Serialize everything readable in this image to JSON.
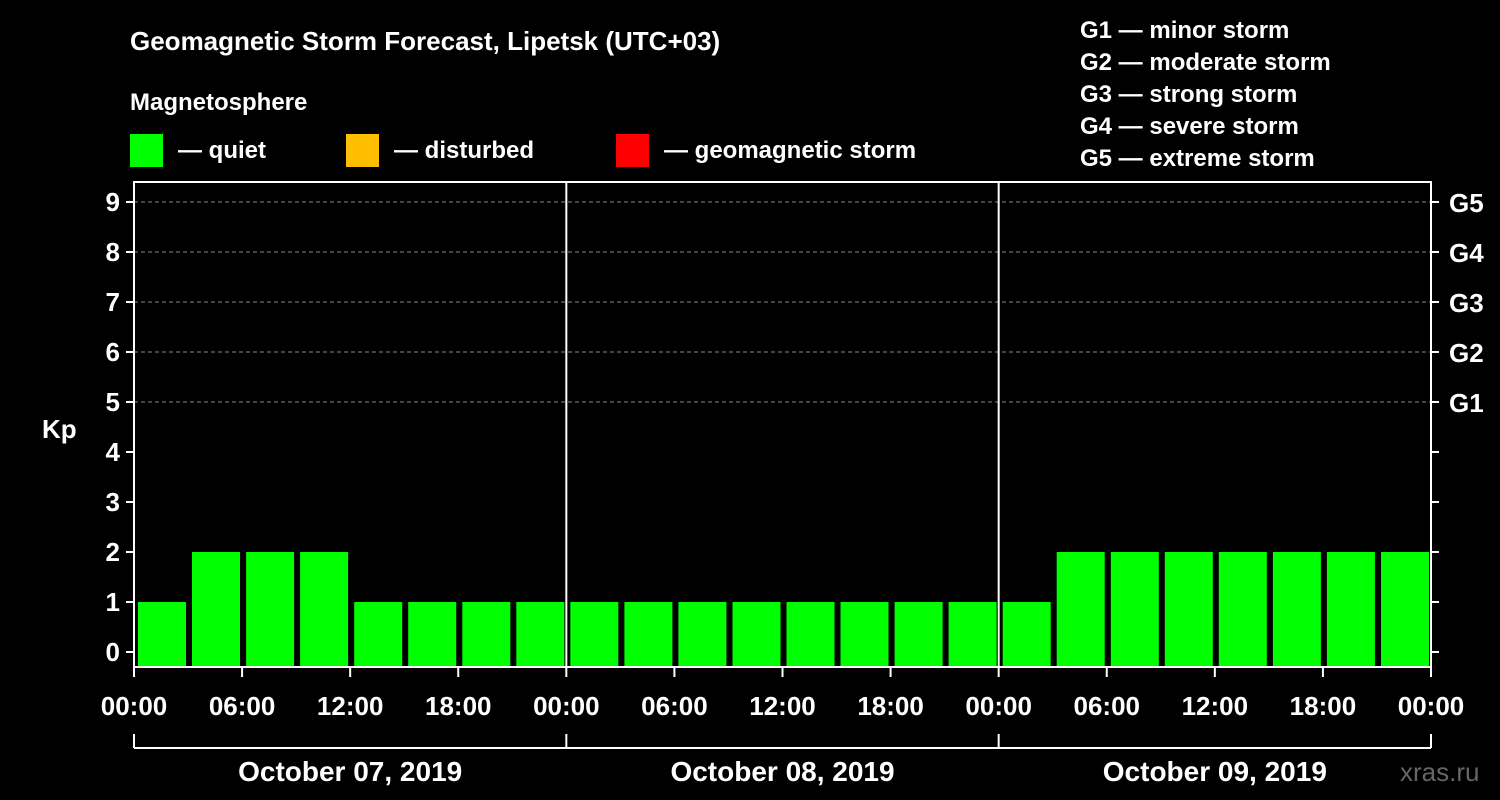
{
  "chart_data": {
    "type": "bar",
    "title": "Geomagnetic Storm Forecast, Lipetsk (UTC+03)",
    "legend_title": "Magnetosphere",
    "legend": [
      {
        "color": "#00ff00",
        "label": "— quiet"
      },
      {
        "color": "#ffbf00",
        "label": "— disturbed"
      },
      {
        "color": "#ff0000",
        "label": "— geomagnetic storm"
      }
    ],
    "storm_scale": [
      "G1 — minor storm",
      "G2 — moderate storm",
      "G3 — strong storm",
      "G4 — severe storm",
      "G5 — extreme storm"
    ],
    "ylabel": "Kp",
    "ylim": [
      0,
      9
    ],
    "y_ticks": [
      "0",
      "1",
      "2",
      "3",
      "4",
      "5",
      "6",
      "7",
      "8",
      "9"
    ],
    "right_ticks": [
      {
        "kp": 5,
        "label": "G1"
      },
      {
        "kp": 6,
        "label": "G2"
      },
      {
        "kp": 7,
        "label": "G3"
      },
      {
        "kp": 8,
        "label": "G4"
      },
      {
        "kp": 9,
        "label": "G5"
      }
    ],
    "x_ticks": [
      "00:00",
      "06:00",
      "12:00",
      "18:00",
      "00:00",
      "06:00",
      "12:00",
      "18:00",
      "00:00",
      "06:00",
      "12:00",
      "18:00",
      "00:00"
    ],
    "days": [
      "October 07, 2019",
      "October 08, 2019",
      "October 09, 2019"
    ],
    "interval_hours": 3,
    "values": [
      1,
      2,
      2,
      2,
      1,
      1,
      1,
      1,
      1,
      1,
      1,
      1,
      1,
      1,
      1,
      1,
      1,
      2,
      2,
      2,
      2,
      2,
      2,
      2
    ],
    "grid": "dashed horizontal at Kp 5-9",
    "bar_color": "#00ff00"
  },
  "watermark": "xras.ru"
}
